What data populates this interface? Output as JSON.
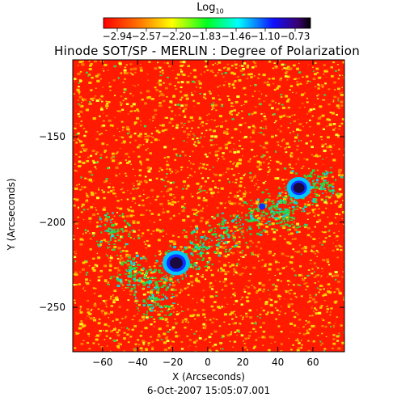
{
  "colorbar": {
    "title": "Log",
    "title_subscript": "10",
    "tick_labels": [
      "−2.94",
      "−2.57",
      "−2.20",
      "−1.83",
      "−1.46",
      "−1.10",
      "−0.73"
    ],
    "colors": [
      "#ff0000",
      "#ff7f00",
      "#ffff00",
      "#00ff00",
      "#00ffff",
      "#0000ff",
      "#000000"
    ]
  },
  "title": "Hinode SOT/SP - MERLIN : Degree of Polarization",
  "x_axis": {
    "label": "X (Arcseconds)",
    "ticks": [
      -60,
      -40,
      -20,
      0,
      20,
      40,
      60
    ],
    "tick_labels": [
      "−60",
      "−40",
      "−20",
      "0",
      "20",
      "40",
      "60"
    ],
    "range": [
      -77,
      78
    ]
  },
  "y_axis": {
    "label": "Y (Arcseconds)",
    "ticks": [
      -150,
      -200,
      -250
    ],
    "tick_labels": [
      "−150",
      "−200",
      "−250"
    ],
    "range": [
      -276,
      -105
    ]
  },
  "timestamp": "6-Oct-2007 15:05:07.001",
  "image": {
    "description_colors": {
      "background": "#ff2000",
      "mid": "#ffdd00",
      "plage": "#22dd44",
      "pore": "#1a1040"
    },
    "features": [
      {
        "kind": "pore",
        "x": -18,
        "y": -224
      },
      {
        "kind": "pore",
        "x": 52,
        "y": -180
      }
    ]
  }
}
